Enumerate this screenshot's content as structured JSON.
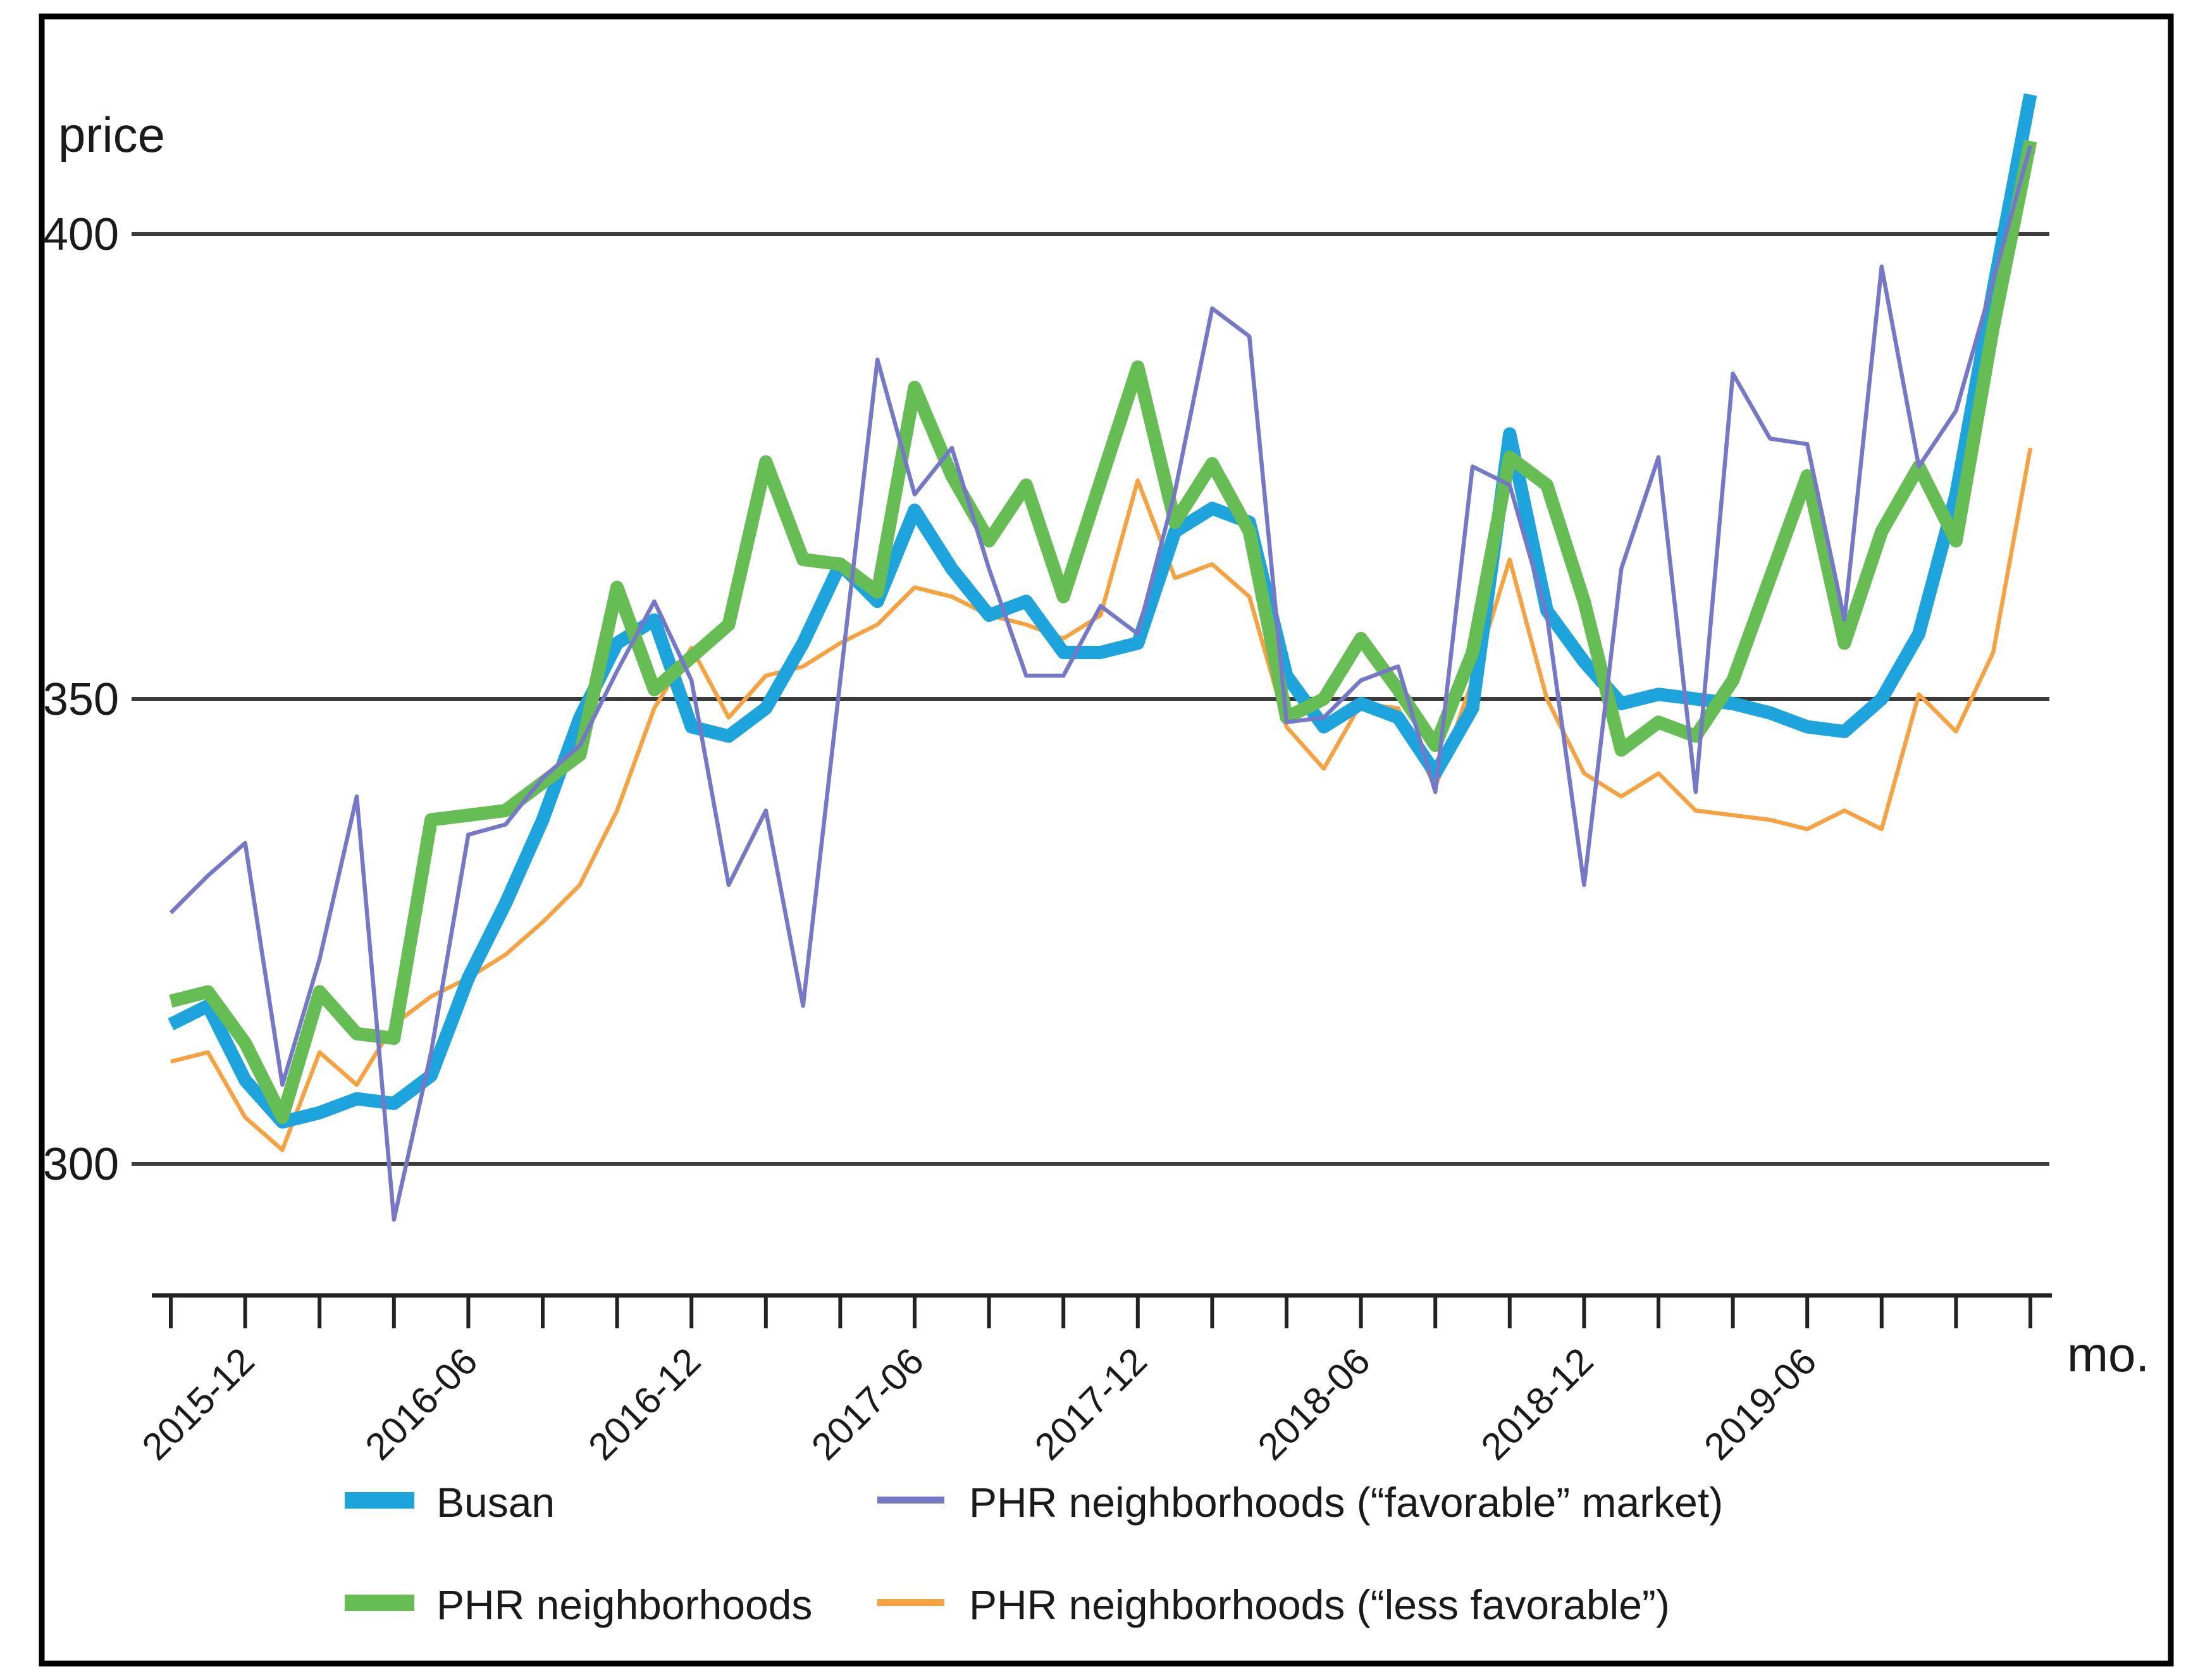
{
  "chart_data": {
    "type": "line",
    "title": "",
    "ylabel": "price",
    "xlabel": "mo.",
    "grid": "horizontal-only",
    "legend_position": "bottom",
    "y_ticks": [
      300,
      350,
      400
    ],
    "ylim": [
      283,
      418
    ],
    "x_labeled_ticks": [
      "2015-12",
      "2016-06",
      "2016-12",
      "2017-06",
      "2017-12",
      "2018-06",
      "2018-12",
      "2019-06"
    ],
    "x_labeled_tick_indices": [
      2,
      8,
      14,
      20,
      26,
      32,
      38,
      44
    ],
    "x_minor_tick_every_months": 2,
    "months": [
      "2015-10",
      "2015-11",
      "2015-12",
      "2016-01",
      "2016-02",
      "2016-03",
      "2016-04",
      "2016-05",
      "2016-06",
      "2016-07",
      "2016-08",
      "2016-09",
      "2016-10",
      "2016-11",
      "2016-12",
      "2017-01",
      "2017-02",
      "2017-03",
      "2017-04",
      "2017-05",
      "2017-06",
      "2017-07",
      "2017-08",
      "2017-09",
      "2017-10",
      "2017-11",
      "2017-12",
      "2018-01",
      "2018-02",
      "2018-03",
      "2018-04",
      "2018-05",
      "2018-06",
      "2018-07",
      "2018-08",
      "2018-09",
      "2018-10",
      "2018-11",
      "2018-12",
      "2019-01",
      "2019-02",
      "2019-03",
      "2019-04",
      "2019-05",
      "2019-06",
      "2019-07",
      "2019-08",
      "2019-09",
      "2019-10",
      "2019-11",
      "2019-12"
    ],
    "series": [
      {
        "name": "Busan",
        "color": "#1ea4dc",
        "thickness": "thick",
        "values": [
          315,
          317,
          309,
          304.5,
          305.5,
          307,
          306.5,
          309.5,
          320,
          328,
          337,
          348,
          356,
          358.5,
          347,
          346,
          349,
          356,
          364.5,
          360.5,
          370.3,
          364,
          359,
          360.5,
          355,
          355,
          356,
          368,
          370.5,
          369,
          352.5,
          347,
          349.5,
          348,
          342,
          349,
          378.5,
          359.5,
          354,
          349.5,
          350.5,
          350,
          349.5,
          348.5,
          347,
          346.5,
          350,
          357,
          372,
          394,
          415
        ]
      },
      {
        "name": "PHR neighborhoods",
        "color": "#66bd54",
        "thickness": "thick",
        "values": [
          317.5,
          318.5,
          313,
          305,
          318.5,
          314,
          313.5,
          337,
          337.5,
          338,
          341,
          344,
          362,
          351,
          354.5,
          358,
          375.5,
          365,
          364.5,
          361.5,
          383.5,
          374,
          367,
          373,
          361,
          373.4,
          385.7,
          369,
          375.3,
          368,
          348,
          350,
          356.5,
          351,
          345,
          355,
          376,
          373,
          360.5,
          344.5,
          347.5,
          346,
          352,
          363,
          374,
          356,
          368,
          375,
          367,
          390,
          410
        ]
      },
      {
        "name": "PHR neighborhoods (“favorable” market)",
        "color": "#7478c6",
        "thickness": "thin",
        "values": [
          327,
          331,
          334.5,
          308.5,
          322,
          339.5,
          294,
          312,
          335.4,
          336.5,
          341.5,
          345,
          353,
          360.5,
          352,
          330,
          338,
          317,
          352,
          386.5,
          372,
          377,
          364,
          352.5,
          352.5,
          360,
          357,
          372.3,
          392,
          389,
          347.5,
          348,
          352,
          353.5,
          340,
          375,
          373,
          359,
          330,
          364,
          376,
          340,
          385,
          378,
          377.4,
          358.5,
          396.5,
          375,
          381,
          395,
          409.5
        ]
      },
      {
        "name": "PHR neighborhoods (“less favorable”)",
        "color": "#f6a241",
        "thickness": "thin",
        "values": [
          311,
          312,
          305,
          301.5,
          312,
          308.5,
          315,
          318,
          320,
          322.5,
          326,
          330,
          338,
          349,
          355.5,
          348,
          352.5,
          353.5,
          356,
          358,
          362,
          361,
          359,
          358,
          356.5,
          359,
          373.5,
          363,
          364.5,
          361,
          347,
          342.5,
          349.5,
          349,
          340.5,
          352,
          365,
          350,
          342,
          339.5,
          342,
          338,
          337.5,
          337,
          336,
          338,
          336,
          350.5,
          346.5,
          355,
          377
        ]
      }
    ],
    "colors": {
      "gridline": "#3c3c3c",
      "axis": "#222222",
      "frame": "#000000",
      "text": "#1a1a1a"
    }
  }
}
